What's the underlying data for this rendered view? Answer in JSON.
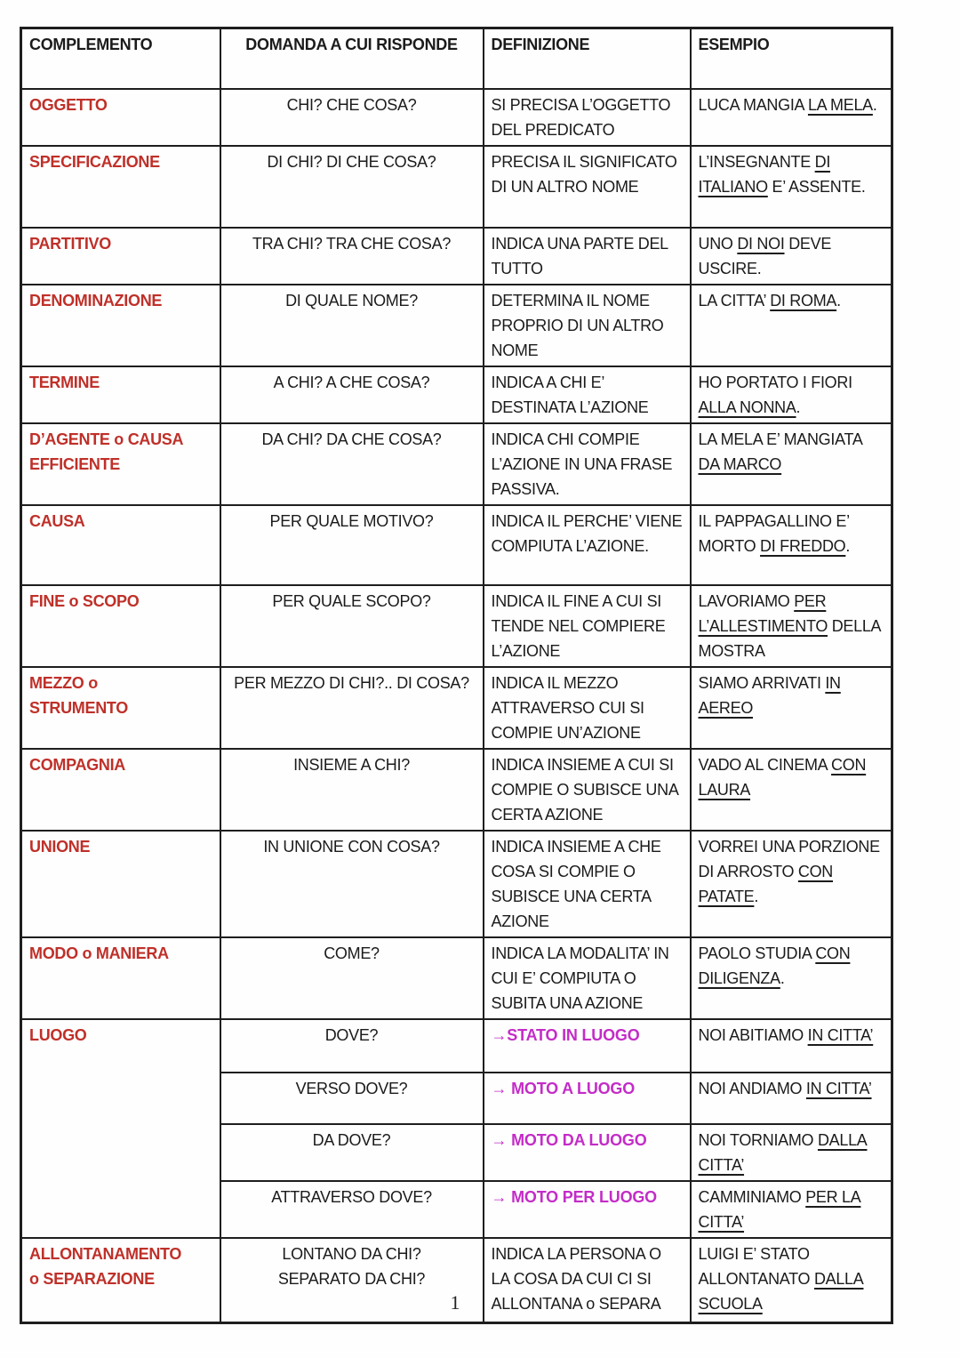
{
  "page": {
    "number": "1"
  },
  "colors": {
    "label_red": "#bf3029",
    "magenta": "#c32cc7",
    "text": "#1b1b1b",
    "border": "#1e1e1e",
    "background": "#ffffff"
  },
  "table": {
    "headers": [
      "COMPLEMENTO",
      "DOMANDA A CUI RISPONDE",
      "DEFINIZIONE",
      "ESEMPIO"
    ],
    "rows": [
      {
        "label": "OGGETTO",
        "question": "CHI? CHE COSA?",
        "definition": [
          {
            "t": "SI PRECISA L’OGGETTO DEL PREDICATO"
          }
        ],
        "example": [
          {
            "t": "LUCA MANGIA "
          },
          {
            "t": "LA MELA",
            "u": true
          },
          {
            "t": "."
          }
        ]
      },
      {
        "label": "SPECIFICAZIONE",
        "question": "DI CHI? DI CHE COSA?",
        "definition": [
          {
            "t": "PRECISA IL SIGNIFICATO DI UN ALTRO NOME"
          }
        ],
        "example": [
          {
            "t": "L’INSEGNANTE "
          },
          {
            "t": "DI ITALIANO",
            "u": true
          },
          {
            "t": " E’ ASSENTE."
          }
        ]
      },
      {
        "label": "PARTITIVO",
        "question": "TRA CHI? TRA CHE COSA?",
        "definition": [
          {
            "t": "INDICA UNA PARTE DEL TUTTO"
          }
        ],
        "example": [
          {
            "t": "UNO "
          },
          {
            "t": "DI NOI",
            "u": true
          },
          {
            "t": " DEVE USCIRE."
          }
        ]
      },
      {
        "label": "DENOMINAZIONE",
        "question": "DI QUALE NOME?",
        "definition": [
          {
            "t": "DETERMINA IL NOME PROPRIO DI UN ALTRO NOME"
          }
        ],
        "example": [
          {
            "t": "LA CITTA’ "
          },
          {
            "t": "DI ROMA",
            "u": true
          },
          {
            "t": "."
          }
        ]
      },
      {
        "label": "TERMINE",
        "question": "A CHI? A CHE COSA?",
        "definition": [
          {
            "t": "INDICA A CHI E’ DESTINATA L’AZIONE"
          }
        ],
        "example": [
          {
            "t": "HO PORTATO I FIORI "
          },
          {
            "t": "ALLA NONNA",
            "u": true
          },
          {
            "t": "."
          }
        ]
      },
      {
        "label": "D’AGENTE o CAUSA\nEFFICIENTE",
        "question": "DA CHI? DA CHE COSA?",
        "definition": [
          {
            "t": "INDICA CHI COMPIE L’AZIONE IN UNA FRASE PASSIVA."
          }
        ],
        "example": [
          {
            "t": "LA MELA E’ MANGIATA "
          },
          {
            "t": "DA MARCO",
            "u": true
          }
        ]
      },
      {
        "label": "CAUSA",
        "question": "PER QUALE MOTIVO?",
        "definition": [
          {
            "t": "INDICA IL PERCHE’ VIENE COMPIUTA L’AZIONE."
          }
        ],
        "example": [
          {
            "t": "IL PAPPAGALLINO E’ MORTO "
          },
          {
            "t": "DI FREDDO",
            "u": true
          },
          {
            "t": "."
          }
        ]
      },
      {
        "label": "FINE o SCOPO",
        "question": "PER QUALE SCOPO?",
        "definition": [
          {
            "t": "INDICA IL FINE A CUI SI TENDE NEL COMPIERE L’AZIONE"
          }
        ],
        "example": [
          {
            "t": "LAVORIAMO "
          },
          {
            "t": "PER L’ALLESTIMENTO",
            "u": true
          },
          {
            "t": " DELLA MOSTRA"
          }
        ]
      },
      {
        "label": "MEZZO o\nSTRUMENTO",
        "question": "PER MEZZO DI CHI?.. DI COSA?",
        "definition": [
          {
            "t": "INDICA IL MEZZO ATTRAVERSO CUI SI COMPIE UN’AZIONE"
          }
        ],
        "example": [
          {
            "t": "SIAMO ARRIVATI "
          },
          {
            "t": "IN AEREO",
            "u": true
          }
        ]
      },
      {
        "label": "COMPAGNIA",
        "question": "INSIEME A CHI?",
        "definition": [
          {
            "t": "INDICA INSIEME A CUI SI COMPIE O SUBISCE UNA CERTA AZIONE"
          }
        ],
        "example": [
          {
            "t": "VADO AL CINEMA "
          },
          {
            "t": "CON LAURA",
            "u": true
          }
        ]
      },
      {
        "label": "UNIONE",
        "question": "IN UNIONE CON COSA?",
        "definition": [
          {
            "t": "INDICA INSIEME A CHE COSA SI COMPIE O SUBISCE UNA CERTA AZIONE"
          }
        ],
        "example": [
          {
            "t": "VORREI UNA PORZIONE DI ARROSTO "
          },
          {
            "t": "CON PATATE",
            "u": true
          },
          {
            "t": "."
          }
        ]
      },
      {
        "label": "MODO o MANIERA",
        "question": "COME?",
        "definition": [
          {
            "t": "INDICA LA MODALITA’ IN CUI E’ COMPIUTA O SUBITA UNA AZIONE"
          }
        ],
        "example": [
          {
            "t": "PAOLO STUDIA "
          },
          {
            "t": "CON DILIGENZA",
            "u": true
          },
          {
            "t": "."
          }
        ]
      },
      {
        "label": "LUOGO",
        "subrows": [
          {
            "question": "DOVE?",
            "definition": [
              {
                "t": "→STATO IN LUOGO",
                "m": true
              }
            ],
            "example": [
              {
                "t": "NOI ABITIAMO "
              },
              {
                "t": "IN CITTA’",
                "u": true
              }
            ]
          },
          {
            "question": "VERSO DOVE?",
            "definition": [
              {
                "t": "→ MOTO A LUOGO",
                "m": true
              }
            ],
            "example": [
              {
                "t": "NOI ANDIAMO "
              },
              {
                "t": "IN CITTA’",
                "u": true
              }
            ]
          },
          {
            "question": "DA DOVE?",
            "definition": [
              {
                "t": "→ MOTO DA LUOGO",
                "m": true
              }
            ],
            "example": [
              {
                "t": "NOI TORNIAMO "
              },
              {
                "t": "DALLA CITTA’",
                "u": true
              }
            ]
          },
          {
            "question": "ATTRAVERSO DOVE?",
            "definition": [
              {
                "t": "→ MOTO PER LUOGO",
                "m": true
              }
            ],
            "example": [
              {
                "t": "CAMMINIAMO "
              },
              {
                "t": "PER LA CITTA’",
                "u": true
              }
            ]
          }
        ]
      },
      {
        "label": "ALLONTANAMENTO\no SEPARAZIONE",
        "question": "LONTANO DA CHI?\nSEPARATO DA CHI?",
        "definition": [
          {
            "t": "INDICA LA PERSONA O LA COSA DA CUI CI SI ALLONTANA o SEPARA"
          }
        ],
        "example": [
          {
            "t": "LUIGI E’ STATO ALLONTANATO "
          },
          {
            "t": "DALLA SCUOLA",
            "u": true
          }
        ]
      }
    ]
  }
}
